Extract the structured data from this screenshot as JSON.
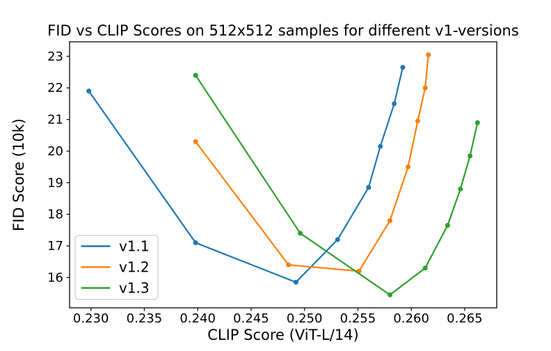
{
  "chart_data": {
    "type": "line",
    "title": "FID vs CLIP Scores on 512x512 samples for different v1-versions",
    "xlabel": "CLIP Score (ViT-L/14)",
    "ylabel": "FID Score (10k)",
    "xlim": [
      0.228,
      0.268
    ],
    "ylim": [
      15.04,
      23.46
    ],
    "xticks": [
      0.23,
      0.235,
      0.24,
      0.245,
      0.25,
      0.255,
      0.26,
      0.265
    ],
    "yticks": [
      16,
      17,
      18,
      19,
      20,
      21,
      22,
      23
    ],
    "grid": false,
    "background_color": "#ffffff",
    "spine_color": "#000000",
    "text_color": "#000000",
    "legend": {
      "position": "lower-left",
      "border_color": "#cccccc",
      "fill_color": "#ffffff"
    },
    "marker": "circle",
    "series": [
      {
        "name": "v1.1",
        "color": "#1f77b4",
        "points": [
          [
            0.2298,
            21.9
          ],
          [
            0.2398,
            17.1
          ],
          [
            0.2492,
            15.85
          ],
          [
            0.2531,
            17.2
          ],
          [
            0.256,
            18.85
          ],
          [
            0.2571,
            20.15
          ],
          [
            0.2584,
            21.5
          ],
          [
            0.2592,
            22.65
          ]
        ]
      },
      {
        "name": "v1.2",
        "color": "#ff7f0e",
        "points": [
          [
            0.2398,
            20.3
          ],
          [
            0.2485,
            16.4
          ],
          [
            0.2551,
            16.2
          ],
          [
            0.258,
            17.8
          ],
          [
            0.2597,
            19.5
          ],
          [
            0.2606,
            20.95
          ],
          [
            0.2613,
            22.0
          ],
          [
            0.2616,
            23.05
          ]
        ]
      },
      {
        "name": "v1.3",
        "color": "#2ca02c",
        "points": [
          [
            0.2398,
            22.4
          ],
          [
            0.2496,
            17.4
          ],
          [
            0.258,
            15.45
          ],
          [
            0.2613,
            16.3
          ],
          [
            0.2634,
            17.65
          ],
          [
            0.2646,
            18.8
          ],
          [
            0.2655,
            19.85
          ],
          [
            0.2662,
            20.9
          ]
        ]
      }
    ]
  }
}
